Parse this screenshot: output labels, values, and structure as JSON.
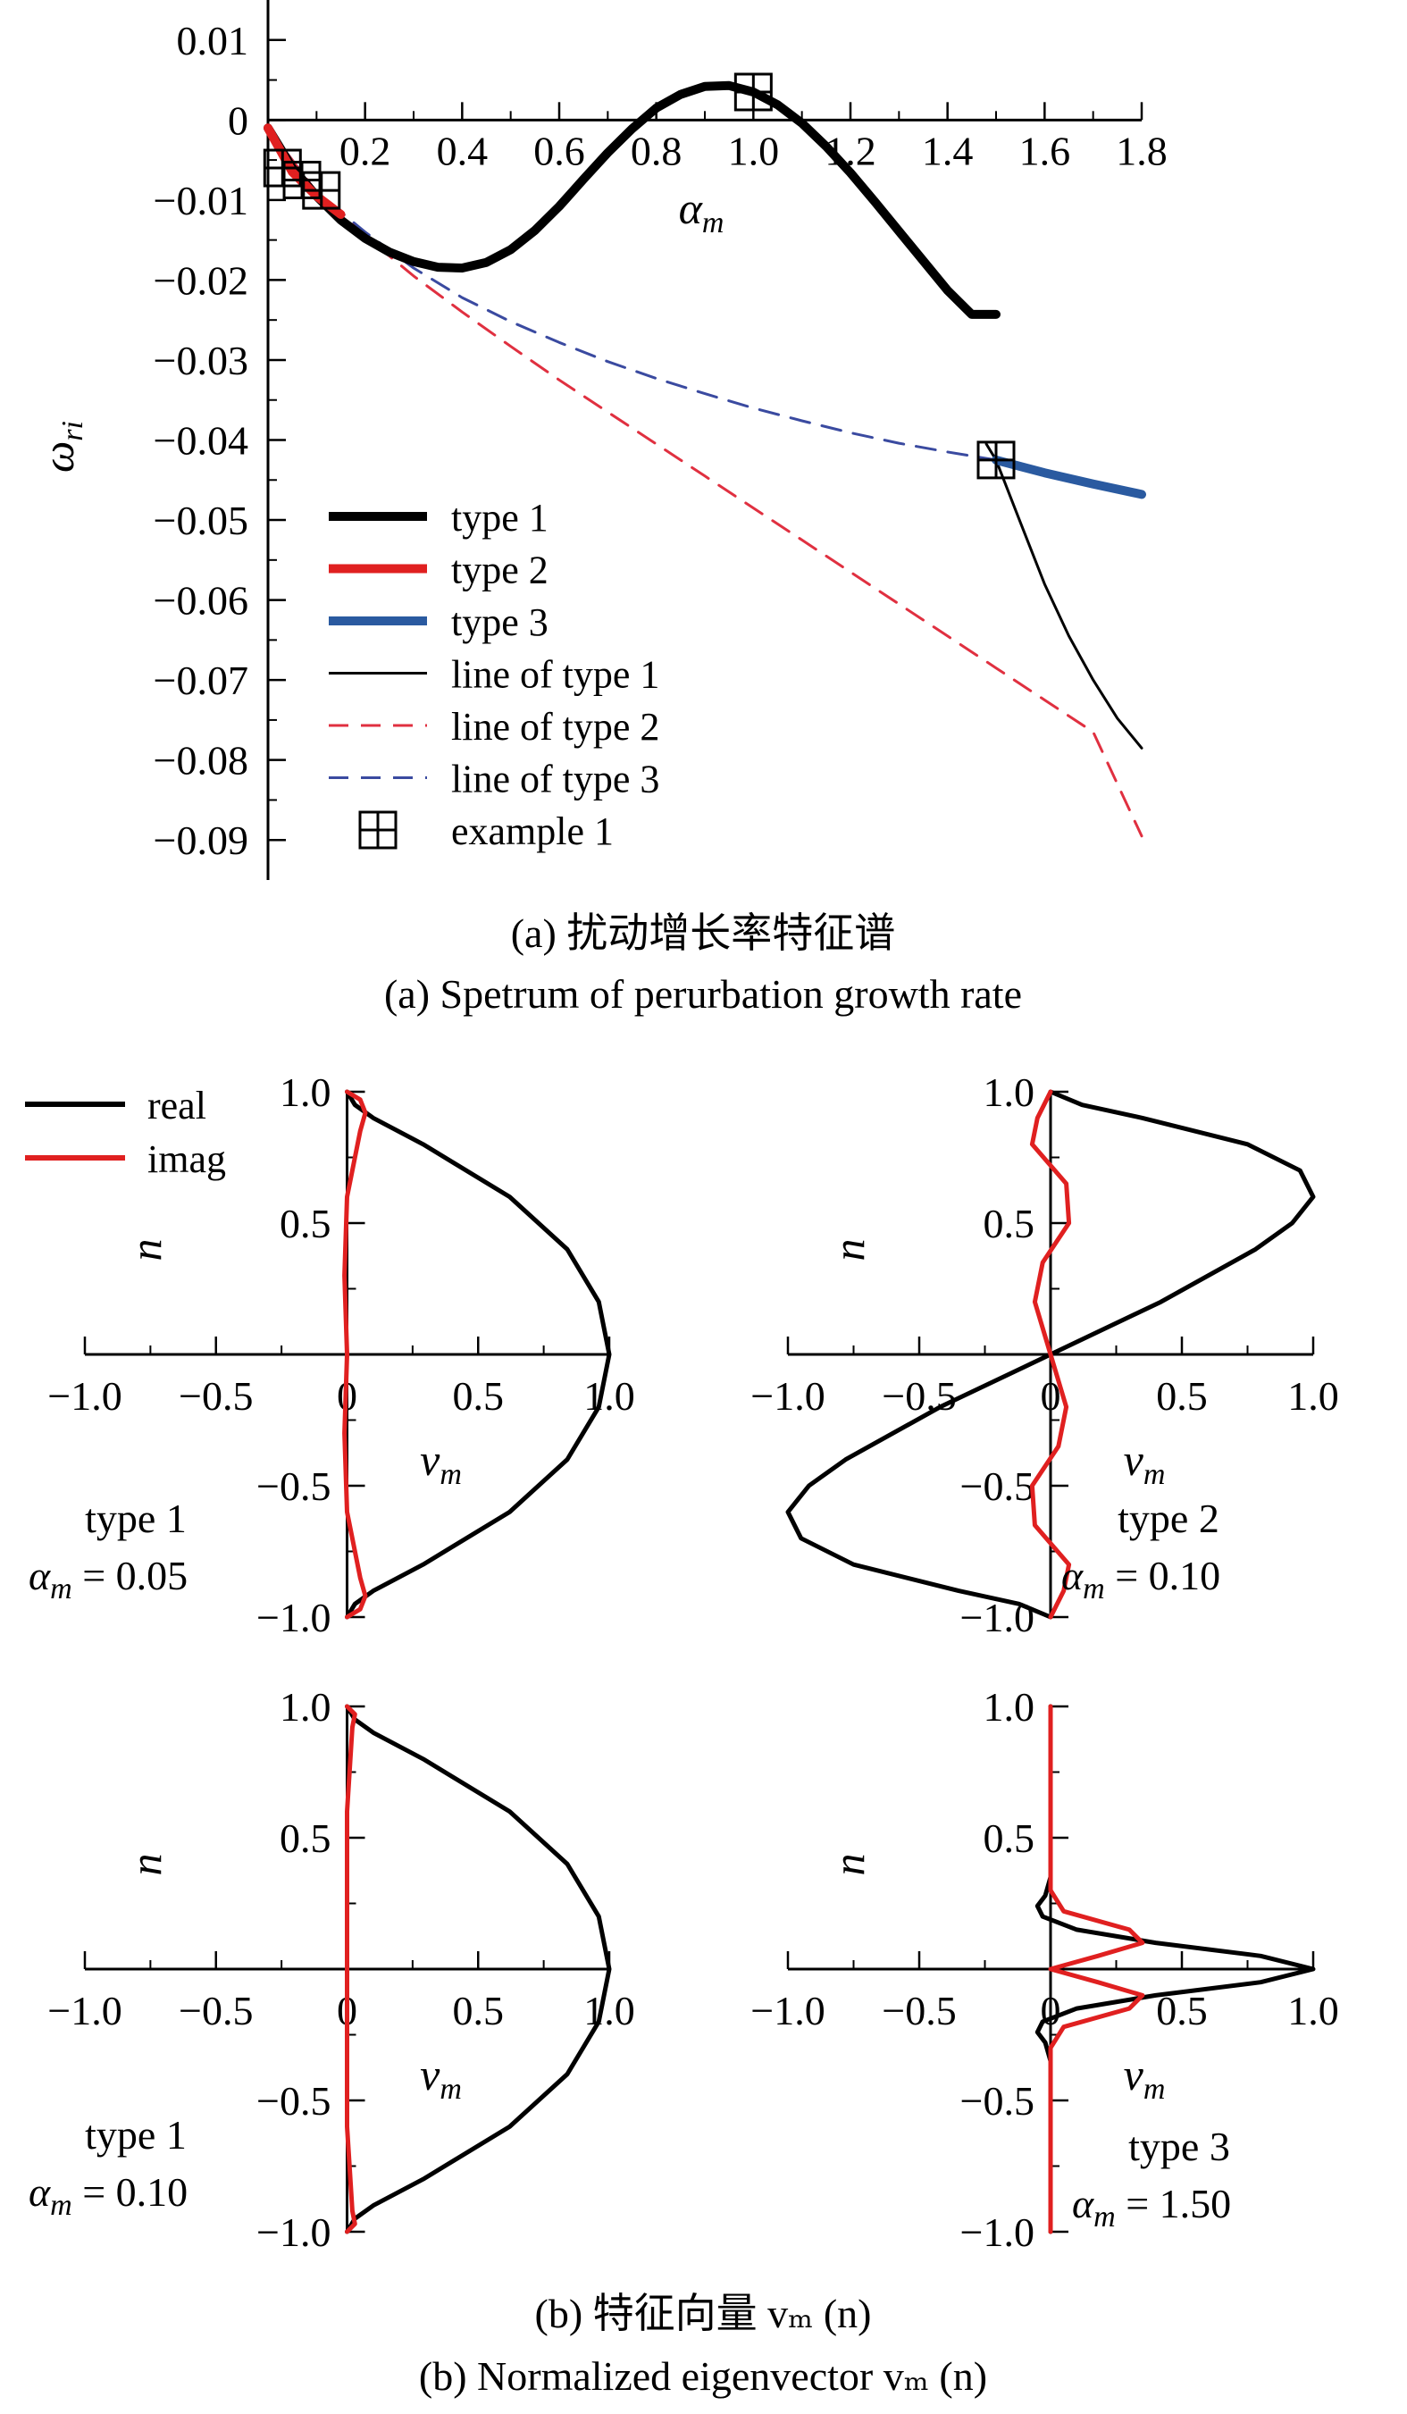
{
  "captions": {
    "a_cn": "(a) 扰动增长率特征谱",
    "a_en": "(a) Spetrum of perurbation growth rate",
    "b_cn": "(b) 特征向量 vₘ (n)",
    "b_en": "(b) Normalized eigenvector vₘ (n)"
  },
  "chart_data": [
    {
      "type": "line",
      "xlabel": "α",
      "xlabel_sub": "m",
      "ylabel": "ω",
      "ylabel_sub": "ri",
      "xlim": [
        0,
        1.8
      ],
      "ylim": [
        -0.095,
        0.015
      ],
      "xticks": [
        "0.2",
        "0.4",
        "0.6",
        "0.8",
        "1.0",
        "1.2",
        "1.4",
        "1.6",
        "1.8"
      ],
      "xtick_values": [
        0.2,
        0.4,
        0.6,
        0.8,
        1.0,
        1.2,
        1.4,
        1.6,
        1.8
      ],
      "yticks": [
        "0.01",
        "0",
        "−0.01",
        "−0.02",
        "−0.03",
        "−0.04",
        "−0.05",
        "−0.06",
        "−0.07",
        "−0.08",
        "−0.09"
      ],
      "ytick_values": [
        0.01,
        0,
        -0.01,
        -0.02,
        -0.03,
        -0.04,
        -0.05,
        -0.06,
        -0.07,
        -0.08,
        -0.09
      ],
      "legend_position": "bottom-left",
      "legend": [
        "type 1",
        "type 2",
        "type 3",
        "line of type 1",
        "line of type 2",
        "line of type 3",
        "example 1"
      ],
      "series": [
        {
          "name": "type 1",
          "color": "#000000",
          "style": "thick",
          "x": [
            0,
            0.05,
            0.1,
            0.15,
            0.2,
            0.25,
            0.3,
            0.35,
            0.4,
            0.45,
            0.5,
            0.55,
            0.6,
            0.65,
            0.7,
            0.75,
            0.8,
            0.85,
            0.9,
            0.95,
            1.0,
            1.05,
            1.1,
            1.15,
            1.2,
            1.25,
            1.3,
            1.35,
            1.4,
            1.45,
            1.5
          ],
          "y": [
            -0.001,
            -0.006,
            -0.0095,
            -0.0125,
            -0.0148,
            -0.0165,
            -0.0177,
            -0.0184,
            -0.0185,
            -0.0178,
            -0.0162,
            -0.0138,
            -0.0108,
            -0.0074,
            -0.0041,
            -0.0011,
            0.0015,
            0.0032,
            0.0042,
            0.0043,
            0.0035,
            0.0019,
            -0.0004,
            -0.0033,
            -0.0066,
            -0.0102,
            -0.0139,
            -0.0176,
            -0.0213,
            -0.0243,
            -0.0243
          ]
        },
        {
          "name": "type 2",
          "color": "#e02020",
          "style": "thick",
          "x": [
            0,
            0.05,
            0.1,
            0.15
          ],
          "y": [
            -0.001,
            -0.0065,
            -0.0095,
            -0.0118
          ]
        },
        {
          "name": "type 3",
          "color": "#2a5aa0",
          "style": "thick",
          "x": [
            1.5,
            1.6,
            1.7,
            1.8
          ],
          "y": [
            -0.0425,
            -0.0441,
            -0.0455,
            -0.0468
          ]
        },
        {
          "name": "line of type 1",
          "color": "#000000",
          "style": "thin",
          "x": [
            1.48,
            1.5,
            1.55,
            1.6,
            1.65,
            1.7,
            1.75,
            1.8
          ],
          "y": [
            -0.0405,
            -0.0425,
            -0.0503,
            -0.058,
            -0.0645,
            -0.07,
            -0.0748,
            -0.0785
          ]
        },
        {
          "name": "line of type 2",
          "color": "#e03040",
          "style": "dashed",
          "x": [
            0,
            0.1,
            0.2,
            0.3,
            0.4,
            0.5,
            0.6,
            0.7,
            0.8,
            0.9,
            1.0,
            1.1,
            1.2,
            1.3,
            1.4,
            1.5,
            1.6,
            1.7,
            1.8
          ],
          "y": [
            -0.001,
            -0.009,
            -0.0145,
            -0.0195,
            -0.024,
            -0.0283,
            -0.0325,
            -0.0365,
            -0.0405,
            -0.0445,
            -0.0485,
            -0.0525,
            -0.0565,
            -0.0605,
            -0.0645,
            -0.0685,
            -0.0725,
            -0.0765,
            -0.0895
          ]
        },
        {
          "name": "line of type 3",
          "color": "#3a4aa0",
          "style": "dashed",
          "x": [
            0,
            0.1,
            0.2,
            0.3,
            0.4,
            0.5,
            0.6,
            0.7,
            0.8,
            0.9,
            1.0,
            1.1,
            1.2,
            1.3,
            1.4,
            1.5
          ],
          "y": [
            -0.001,
            -0.009,
            -0.014,
            -0.0185,
            -0.0222,
            -0.0252,
            -0.0278,
            -0.0302,
            -0.0323,
            -0.0342,
            -0.036,
            -0.0376,
            -0.0391,
            -0.0404,
            -0.0415,
            -0.0425
          ]
        }
      ],
      "markers": {
        "name": "example 1",
        "x": [
          0.03,
          0.07,
          0.11,
          1.0,
          1.5
        ],
        "y": [
          -0.006,
          -0.0075,
          -0.0088,
          0.0035,
          -0.0425
        ]
      }
    },
    {
      "type": "line",
      "annotation": "type 1",
      "alpha_label": "= 0.05",
      "xlabel": "v",
      "xlabel_sub": "m",
      "ylabel": "n",
      "xlim": [
        -1.0,
        1.0
      ],
      "ylim": [
        -1.0,
        1.0
      ],
      "xticks": [
        "−1.0",
        "−0.5",
        "0",
        "0.5",
        "1.0"
      ],
      "xtick_values": [
        -1.0,
        -0.5,
        0,
        0.5,
        1.0
      ],
      "yticks": [
        "1.0",
        "0.5",
        "−0.5",
        "−1.0"
      ],
      "ytick_values": [
        1.0,
        0.5,
        -0.5,
        -1.0
      ],
      "legend": [
        "real",
        "imag"
      ],
      "legend_position": "top-left",
      "real": {
        "n": [
          -1,
          -0.95,
          -0.9,
          -0.8,
          -0.6,
          -0.4,
          -0.2,
          0,
          0.2,
          0.4,
          0.6,
          0.8,
          0.9,
          0.95,
          1
        ],
        "v": [
          0,
          0.03,
          0.1,
          0.29,
          0.62,
          0.84,
          0.96,
          1.0,
          0.96,
          0.84,
          0.62,
          0.29,
          0.1,
          0.03,
          0
        ]
      },
      "imag": {
        "n": [
          -1,
          -0.97,
          -0.92,
          -0.85,
          -0.6,
          -0.3,
          0,
          0.3,
          0.6,
          0.85,
          0.92,
          0.97,
          1
        ],
        "v": [
          0,
          0.05,
          0.07,
          0.05,
          0.0,
          -0.01,
          0.0,
          -0.01,
          0.0,
          0.05,
          0.07,
          0.05,
          0
        ]
      }
    },
    {
      "type": "line",
      "annotation": "type 2",
      "alpha_label": "= 0.10",
      "xlabel": "v",
      "xlabel_sub": "m",
      "ylabel": "n",
      "xlim": [
        -1.0,
        1.0
      ],
      "ylim": [
        -1.0,
        1.0
      ],
      "xticks": [
        "−1.0",
        "−0.5",
        "0",
        "0.5",
        "1.0"
      ],
      "xtick_values": [
        -1.0,
        -0.5,
        0,
        0.5,
        1.0
      ],
      "yticks": [
        "1.0",
        "0.5",
        "−0.5",
        "−1.0"
      ],
      "ytick_values": [
        1.0,
        0.5,
        -0.5,
        -1.0
      ],
      "real": {
        "n": [
          -1,
          -0.95,
          -0.9,
          -0.8,
          -0.7,
          -0.6,
          -0.5,
          -0.4,
          -0.2,
          0,
          0.2,
          0.4,
          0.5,
          0.6,
          0.7,
          0.8,
          0.9,
          0.95,
          1
        ],
        "v": [
          0,
          -0.12,
          -0.35,
          -0.75,
          -0.95,
          -1.0,
          -0.92,
          -0.78,
          -0.42,
          0,
          0.42,
          0.78,
          0.92,
          1.0,
          0.95,
          0.75,
          0.35,
          0.12,
          0
        ]
      },
      "imag": {
        "n": [
          -1,
          -0.9,
          -0.8,
          -0.65,
          -0.5,
          -0.35,
          -0.2,
          0,
          0.2,
          0.35,
          0.5,
          0.65,
          0.8,
          0.9,
          1
        ],
        "v": [
          0,
          0.05,
          0.07,
          -0.06,
          -0.07,
          0.03,
          0.06,
          0,
          -0.06,
          -0.03,
          0.07,
          0.06,
          -0.07,
          -0.05,
          0
        ]
      }
    },
    {
      "type": "line",
      "annotation": "type 1",
      "alpha_label": "= 0.10",
      "xlabel": "v",
      "xlabel_sub": "m",
      "ylabel": "n",
      "xlim": [
        -1.0,
        1.0
      ],
      "ylim": [
        -1.0,
        1.0
      ],
      "xticks": [
        "−1.0",
        "−0.5",
        "0",
        "0.5",
        "1.0"
      ],
      "xtick_values": [
        -1.0,
        -0.5,
        0,
        0.5,
        1.0
      ],
      "yticks": [
        "1.0",
        "0.5",
        "−0.5",
        "−1.0"
      ],
      "ytick_values": [
        1.0,
        0.5,
        -0.5,
        -1.0
      ],
      "real": {
        "n": [
          -1,
          -0.95,
          -0.9,
          -0.8,
          -0.6,
          -0.4,
          -0.2,
          0,
          0.2,
          0.4,
          0.6,
          0.8,
          0.9,
          0.95,
          1
        ],
        "v": [
          0,
          0.03,
          0.1,
          0.29,
          0.62,
          0.84,
          0.96,
          1.0,
          0.96,
          0.84,
          0.62,
          0.29,
          0.1,
          0.03,
          0
        ]
      },
      "imag": {
        "n": [
          -1,
          -0.97,
          -0.92,
          -0.6,
          0,
          0.6,
          0.92,
          0.97,
          1
        ],
        "v": [
          0,
          0.03,
          0.02,
          0.0,
          0.0,
          0.0,
          0.02,
          0.03,
          0
        ]
      }
    },
    {
      "type": "line",
      "annotation": "type 3",
      "alpha_label": "= 1.50",
      "xlabel": "v",
      "xlabel_sub": "m",
      "ylabel": "n",
      "xlim": [
        -1.0,
        1.0
      ],
      "ylim": [
        -1.0,
        1.0
      ],
      "xticks": [
        "−1.0",
        "−0.5",
        "0",
        "0.5",
        "1.0"
      ],
      "xtick_values": [
        -1.0,
        -0.5,
        0,
        0.5,
        1.0
      ],
      "yticks": [
        "1.0",
        "0.5",
        "−0.5",
        "−1.0"
      ],
      "ytick_values": [
        1.0,
        0.5,
        -0.5,
        -1.0
      ],
      "real": {
        "n": [
          -1,
          -0.35,
          -0.28,
          -0.24,
          -0.2,
          -0.15,
          -0.1,
          -0.05,
          0,
          0.05,
          0.1,
          0.15,
          0.2,
          0.24,
          0.28,
          0.35,
          1
        ],
        "v": [
          0,
          0,
          -0.02,
          -0.05,
          -0.03,
          0.1,
          0.4,
          0.8,
          1.0,
          0.8,
          0.4,
          0.1,
          -0.03,
          -0.05,
          -0.02,
          0,
          0
        ]
      },
      "imag": {
        "n": [
          -1,
          -0.3,
          -0.22,
          -0.15,
          -0.1,
          -0.05,
          0,
          0.05,
          0.1,
          0.15,
          0.22,
          0.3,
          1
        ],
        "v": [
          0,
          0,
          0.05,
          0.3,
          0.35,
          0.18,
          0,
          0.18,
          0.35,
          0.3,
          0.05,
          0,
          0
        ]
      }
    }
  ]
}
